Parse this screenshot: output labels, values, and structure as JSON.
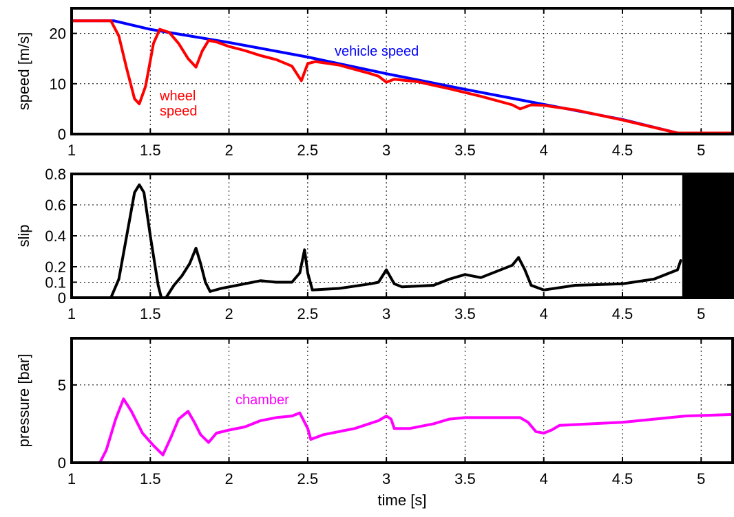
{
  "chart_data": [
    {
      "type": "line",
      "xlabel": "",
      "ylabel": "speed [m/s]",
      "xlim": [
        1,
        5.2
      ],
      "ylim": [
        0,
        25
      ],
      "xticks": [
        "1",
        "1.5",
        "2",
        "2.5",
        "3",
        "3.5",
        "4",
        "4.5",
        "5"
      ],
      "yticks": [
        "0",
        "10",
        "20"
      ],
      "grid": true,
      "series": [
        {
          "name": "vehicle speed",
          "color": "#0000ff",
          "x": [
            1.0,
            1.27,
            1.5,
            2.0,
            2.5,
            3.0,
            3.5,
            4.0,
            4.5,
            4.85,
            5.2
          ],
          "y": [
            22.5,
            22.5,
            20.8,
            18.2,
            15.3,
            12.0,
            8.9,
            5.9,
            2.9,
            0.2,
            0.2
          ]
        },
        {
          "name": "wheel speed",
          "color": "#ff0000",
          "x": [
            1.0,
            1.25,
            1.3,
            1.35,
            1.4,
            1.43,
            1.47,
            1.52,
            1.56,
            1.62,
            1.68,
            1.74,
            1.79,
            1.83,
            1.87,
            1.92,
            2.0,
            2.1,
            2.2,
            2.3,
            2.4,
            2.46,
            2.5,
            2.55,
            2.7,
            2.9,
            2.95,
            3.0,
            3.05,
            3.2,
            3.4,
            3.6,
            3.8,
            3.85,
            3.92,
            4.0,
            4.2,
            4.5,
            4.85,
            5.2
          ],
          "y": [
            22.5,
            22.5,
            19.5,
            13.0,
            7.0,
            6.0,
            9.5,
            18.0,
            20.8,
            20.2,
            18.0,
            15.0,
            13.3,
            16.5,
            18.6,
            18.3,
            17.4,
            16.6,
            15.6,
            14.8,
            13.5,
            10.6,
            14.0,
            14.4,
            13.7,
            12.0,
            11.5,
            10.3,
            10.9,
            10.4,
            9.0,
            7.5,
            5.8,
            5.0,
            5.8,
            5.7,
            4.8,
            2.8,
            0.2,
            0.2
          ]
        }
      ],
      "annotations": [
        {
          "text": "vehicle speed",
          "color": "#0000ff"
        },
        {
          "text": "wheel",
          "color": "#ff0000"
        },
        {
          "text": "speed",
          "color": "#ff0000"
        }
      ]
    },
    {
      "type": "line",
      "xlabel": "",
      "ylabel": "slip",
      "xlim": [
        1,
        5.2
      ],
      "ylim": [
        0,
        0.8
      ],
      "xticks": [
        "1",
        "1.5",
        "2",
        "2.5",
        "3",
        "3.5",
        "4",
        "4.5",
        "5"
      ],
      "yticks": [
        "0",
        "0.1",
        "0.2",
        "0.4",
        "0.6",
        "0.8"
      ],
      "grid": true,
      "series": [
        {
          "name": "",
          "color": "#000000",
          "x": [
            1.0,
            1.25,
            1.3,
            1.35,
            1.4,
            1.43,
            1.46,
            1.5,
            1.55,
            1.57,
            1.6,
            1.65,
            1.7,
            1.75,
            1.79,
            1.82,
            1.85,
            1.88,
            1.95,
            2.0,
            2.1,
            2.2,
            2.3,
            2.4,
            2.45,
            2.48,
            2.5,
            2.53,
            2.7,
            2.9,
            2.95,
            3.0,
            3.05,
            3.1,
            3.3,
            3.4,
            3.5,
            3.6,
            3.7,
            3.8,
            3.84,
            3.88,
            3.92,
            4.0,
            4.2,
            4.5,
            4.7,
            4.85,
            4.87
          ],
          "y": [
            0.0,
            0.0,
            0.12,
            0.4,
            0.68,
            0.73,
            0.68,
            0.4,
            0.08,
            0.0,
            0.0,
            0.08,
            0.14,
            0.22,
            0.32,
            0.22,
            0.1,
            0.04,
            0.06,
            0.07,
            0.09,
            0.11,
            0.1,
            0.1,
            0.16,
            0.31,
            0.16,
            0.05,
            0.06,
            0.09,
            0.1,
            0.18,
            0.09,
            0.07,
            0.08,
            0.12,
            0.15,
            0.13,
            0.17,
            0.21,
            0.26,
            0.18,
            0.08,
            0.05,
            0.08,
            0.09,
            0.12,
            0.18,
            0.24
          ]
        }
      ]
    },
    {
      "type": "line",
      "xlabel": "time [s]",
      "ylabel": "pressure [bar]",
      "xlim": [
        1,
        5.2
      ],
      "ylim": [
        0,
        8
      ],
      "xticks": [
        "1",
        "1.5",
        "2",
        "2.5",
        "3",
        "3.5",
        "4",
        "4.5",
        "5"
      ],
      "yticks": [
        "0",
        "5"
      ],
      "grid": true,
      "series": [
        {
          "name": "chamber",
          "color": "#ff00ff",
          "x": [
            1.0,
            1.18,
            1.22,
            1.28,
            1.33,
            1.38,
            1.45,
            1.52,
            1.58,
            1.63,
            1.68,
            1.74,
            1.78,
            1.82,
            1.87,
            1.92,
            2.0,
            2.1,
            2.2,
            2.3,
            2.4,
            2.45,
            2.5,
            2.52,
            2.6,
            2.8,
            2.95,
            3.0,
            3.03,
            3.05,
            3.15,
            3.3,
            3.4,
            3.5,
            3.7,
            3.85,
            3.9,
            3.95,
            4.0,
            4.05,
            4.1,
            4.5,
            4.9,
            5.2
          ],
          "y": [
            0.0,
            0.0,
            0.8,
            2.8,
            4.1,
            3.3,
            1.9,
            1.1,
            0.5,
            1.6,
            2.8,
            3.3,
            2.6,
            1.8,
            1.3,
            1.9,
            2.1,
            2.3,
            2.7,
            2.9,
            3.0,
            3.2,
            2.2,
            1.5,
            1.8,
            2.2,
            2.7,
            3.0,
            2.8,
            2.2,
            2.2,
            2.5,
            2.8,
            2.9,
            2.9,
            2.9,
            2.6,
            2.0,
            1.9,
            2.1,
            2.4,
            2.6,
            3.0,
            3.1
          ]
        }
      ],
      "annotations": [
        {
          "text": "chamber",
          "color": "#ff00ff"
        }
      ]
    }
  ]
}
